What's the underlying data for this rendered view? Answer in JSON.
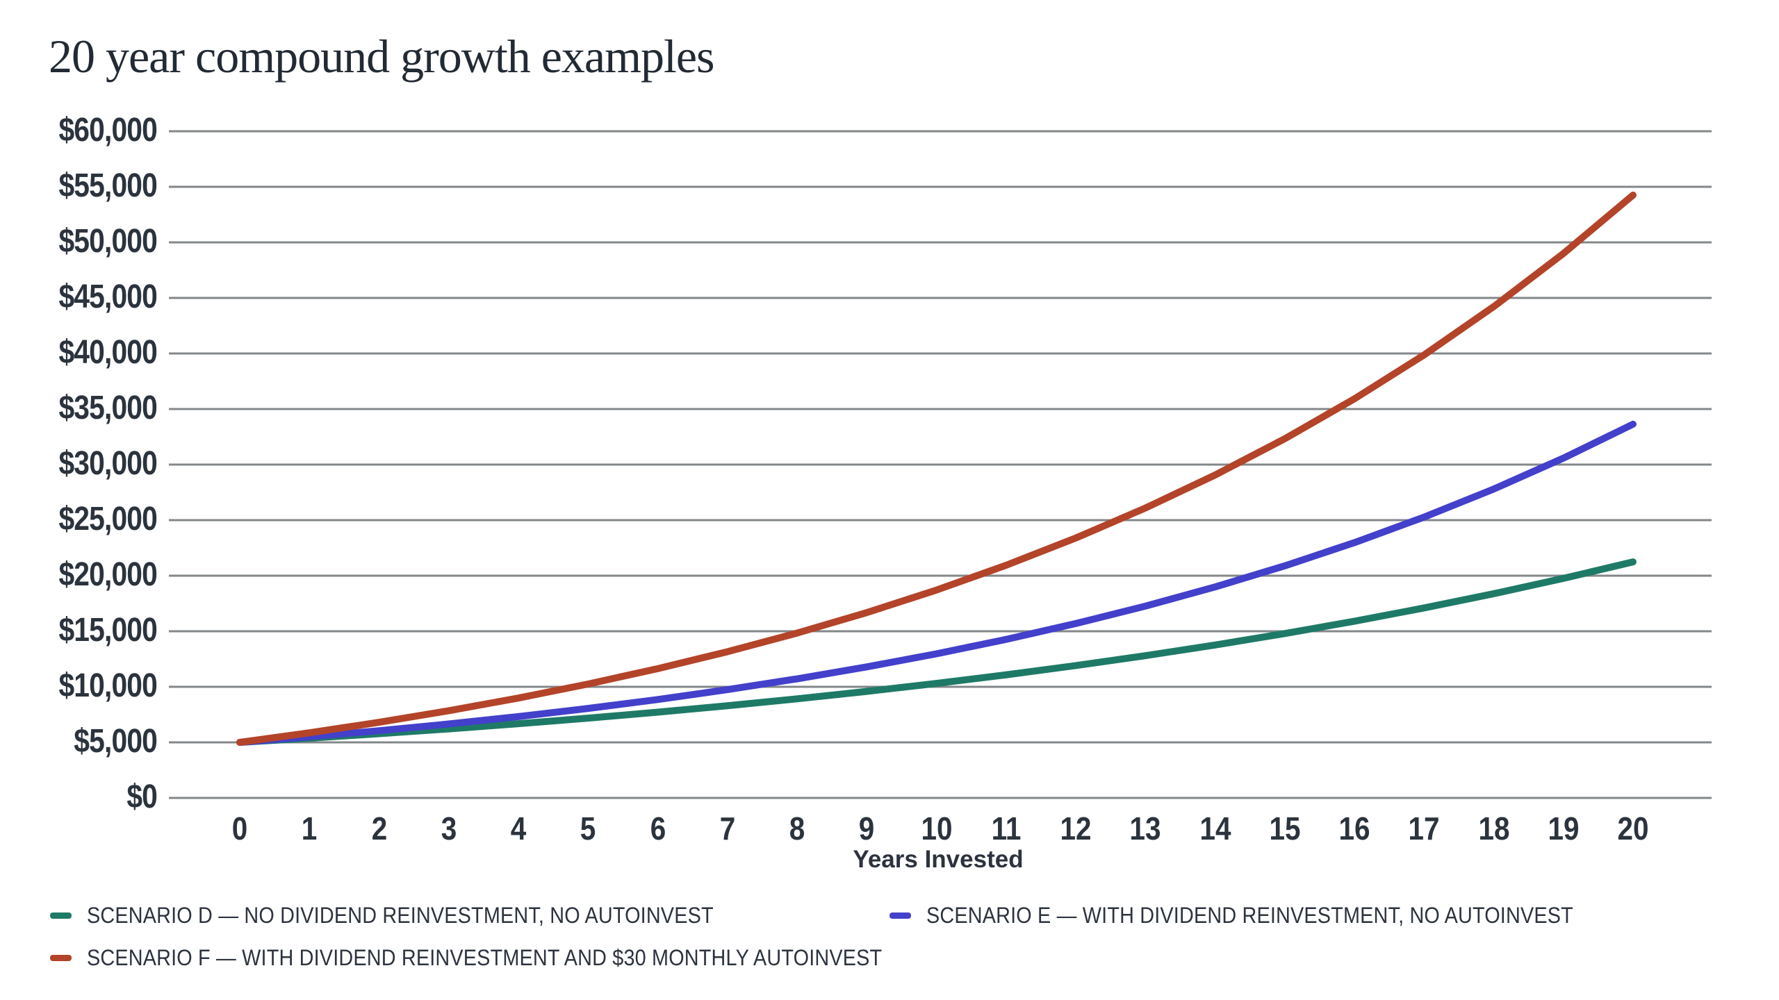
{
  "chart_data": {
    "type": "line",
    "title": "20 year compound growth examples",
    "xlabel": "Years Invested",
    "ylabel": "",
    "x": [
      0,
      1,
      2,
      3,
      4,
      5,
      6,
      7,
      8,
      9,
      10,
      11,
      12,
      13,
      14,
      15,
      16,
      17,
      18,
      19,
      20
    ],
    "x_tick_labels": [
      "0",
      "1",
      "2",
      "3",
      "4",
      "5",
      "6",
      "7",
      "8",
      "9",
      "10",
      "11",
      "12",
      "13",
      "14",
      "15",
      "16",
      "17",
      "18",
      "19",
      "20"
    ],
    "y_tick_labels": [
      "$0",
      "$5,000",
      "$10,000",
      "$15,000",
      "$20,000",
      "$25,000",
      "$30,000",
      "$35,000",
      "$40,000",
      "$45,000",
      "$50,000",
      "$55,000",
      "$60,000"
    ],
    "y_tick_values": [
      0,
      5000,
      10000,
      15000,
      20000,
      25000,
      30000,
      35000,
      40000,
      45000,
      50000,
      55000,
      60000
    ],
    "ylim": [
      0,
      60000
    ],
    "grid": "horizontal",
    "legend_position": "bottom",
    "series": [
      {
        "name": "SCENARIO D — NO DIVIDEND REINVESTMENT, NO AUTOINVEST",
        "color": "#1e7a67",
        "values": [
          5000,
          5375,
          5778,
          6212,
          6678,
          7178,
          7717,
          8296,
          8918,
          9587,
          10305,
          11078,
          11909,
          12802,
          13762,
          14794,
          15904,
          17097,
          18379,
          19757,
          21239
        ]
      },
      {
        "name": "SCENARIO E — WITH DIVIDEND REINVESTMENT, NO AUTOINVEST",
        "color": "#4340cb",
        "values": [
          5000,
          5500,
          6050,
          6655,
          7321,
          8053,
          8858,
          9744,
          10718,
          11790,
          12969,
          14266,
          15692,
          17261,
          18987,
          20886,
          22975,
          25272,
          27800,
          30580,
          33637
        ]
      },
      {
        "name": "SCENARIO F — WITH DIVIDEND REINVESTMENT AND $30 MONTHLY AUTOINVEST",
        "color": "#b34429",
        "values": [
          5000,
          5860,
          6806,
          7847,
          8991,
          10251,
          11636,
          13159,
          14835,
          16678,
          18706,
          20937,
          23390,
          26089,
          29058,
          32324,
          35917,
          39868,
          44216,
          48997,
          54256
        ]
      }
    ],
    "colors": {
      "grid": "#83878a",
      "axis_text": "#2b333d",
      "title_text": "#222a34"
    }
  }
}
